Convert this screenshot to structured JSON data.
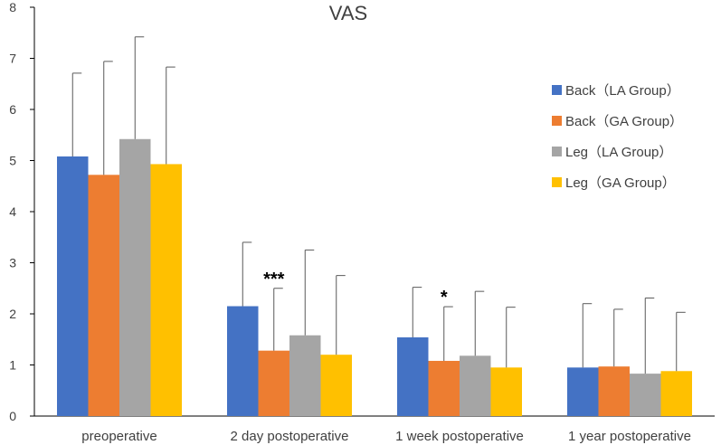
{
  "chart_data": {
    "type": "bar",
    "title": "VAS",
    "xlabel": "",
    "ylabel": "",
    "ylim": [
      0,
      8
    ],
    "yticks": [
      "0",
      "1",
      "2",
      "3",
      "4",
      "5",
      "6",
      "7",
      "8"
    ],
    "grid": false,
    "legend_position": "right",
    "categories": [
      "preoperative",
      "2 day postoperative",
      "1 week postoperative",
      "1 year postoperative"
    ],
    "series": [
      {
        "name": "Back（LA Group）",
        "color": "#4472C4",
        "values": [
          5.08,
          2.15,
          1.54,
          0.95
        ],
        "error": [
          1.63,
          1.25,
          0.98,
          1.25
        ]
      },
      {
        "name": "Back（GA Group）",
        "color": "#ED7D31",
        "values": [
          4.72,
          1.28,
          1.08,
          0.97
        ],
        "error": [
          2.22,
          1.22,
          1.06,
          1.12
        ]
      },
      {
        "name": "Leg（LA Group）",
        "color": "#A5A5A5",
        "values": [
          5.42,
          1.58,
          1.18,
          0.83
        ],
        "error": [
          2.0,
          1.67,
          1.26,
          1.48
        ]
      },
      {
        "name": "Leg（GA Group）",
        "color": "#FFC000",
        "values": [
          4.93,
          1.2,
          0.95,
          0.88
        ],
        "error": [
          1.9,
          1.55,
          1.18,
          1.15
        ]
      }
    ],
    "annotations": [
      {
        "text": "***",
        "category_index": 1,
        "series_index": 1
      },
      {
        "text": "*",
        "category_index": 2,
        "series_index": 1
      }
    ]
  }
}
